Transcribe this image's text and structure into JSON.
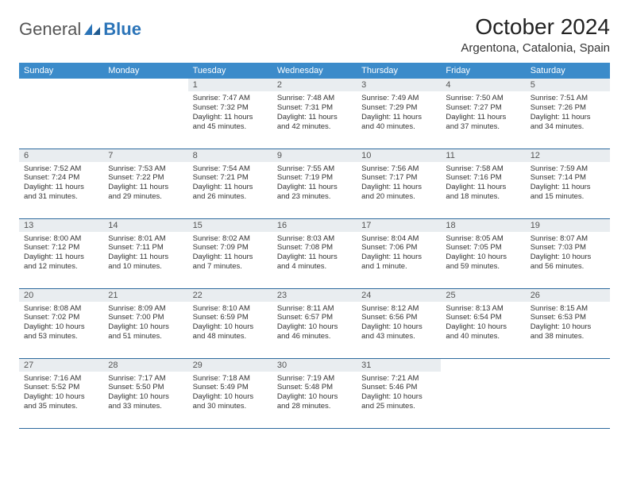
{
  "brand": {
    "general": "General",
    "blue": "Blue"
  },
  "title": "October 2024",
  "location": "Argentona, Catalonia, Spain",
  "colors": {
    "header_bg": "#3b8bca",
    "header_text": "#ffffff",
    "daynum_bg": "#e9edf0",
    "row_border": "#2d6a9e",
    "brand_blue": "#2b74b8"
  },
  "weekdays": [
    "Sunday",
    "Monday",
    "Tuesday",
    "Wednesday",
    "Thursday",
    "Friday",
    "Saturday"
  ],
  "cells": [
    {
      "n": "",
      "sr": "",
      "ss": "",
      "dl": "",
      "empty": true
    },
    {
      "n": "",
      "sr": "",
      "ss": "",
      "dl": "",
      "empty": true
    },
    {
      "n": "1",
      "sr": "Sunrise: 7:47 AM",
      "ss": "Sunset: 7:32 PM",
      "dl": "Daylight: 11 hours and 45 minutes."
    },
    {
      "n": "2",
      "sr": "Sunrise: 7:48 AM",
      "ss": "Sunset: 7:31 PM",
      "dl": "Daylight: 11 hours and 42 minutes."
    },
    {
      "n": "3",
      "sr": "Sunrise: 7:49 AM",
      "ss": "Sunset: 7:29 PM",
      "dl": "Daylight: 11 hours and 40 minutes."
    },
    {
      "n": "4",
      "sr": "Sunrise: 7:50 AM",
      "ss": "Sunset: 7:27 PM",
      "dl": "Daylight: 11 hours and 37 minutes."
    },
    {
      "n": "5",
      "sr": "Sunrise: 7:51 AM",
      "ss": "Sunset: 7:26 PM",
      "dl": "Daylight: 11 hours and 34 minutes."
    },
    {
      "n": "6",
      "sr": "Sunrise: 7:52 AM",
      "ss": "Sunset: 7:24 PM",
      "dl": "Daylight: 11 hours and 31 minutes."
    },
    {
      "n": "7",
      "sr": "Sunrise: 7:53 AM",
      "ss": "Sunset: 7:22 PM",
      "dl": "Daylight: 11 hours and 29 minutes."
    },
    {
      "n": "8",
      "sr": "Sunrise: 7:54 AM",
      "ss": "Sunset: 7:21 PM",
      "dl": "Daylight: 11 hours and 26 minutes."
    },
    {
      "n": "9",
      "sr": "Sunrise: 7:55 AM",
      "ss": "Sunset: 7:19 PM",
      "dl": "Daylight: 11 hours and 23 minutes."
    },
    {
      "n": "10",
      "sr": "Sunrise: 7:56 AM",
      "ss": "Sunset: 7:17 PM",
      "dl": "Daylight: 11 hours and 20 minutes."
    },
    {
      "n": "11",
      "sr": "Sunrise: 7:58 AM",
      "ss": "Sunset: 7:16 PM",
      "dl": "Daylight: 11 hours and 18 minutes."
    },
    {
      "n": "12",
      "sr": "Sunrise: 7:59 AM",
      "ss": "Sunset: 7:14 PM",
      "dl": "Daylight: 11 hours and 15 minutes."
    },
    {
      "n": "13",
      "sr": "Sunrise: 8:00 AM",
      "ss": "Sunset: 7:12 PM",
      "dl": "Daylight: 11 hours and 12 minutes."
    },
    {
      "n": "14",
      "sr": "Sunrise: 8:01 AM",
      "ss": "Sunset: 7:11 PM",
      "dl": "Daylight: 11 hours and 10 minutes."
    },
    {
      "n": "15",
      "sr": "Sunrise: 8:02 AM",
      "ss": "Sunset: 7:09 PM",
      "dl": "Daylight: 11 hours and 7 minutes."
    },
    {
      "n": "16",
      "sr": "Sunrise: 8:03 AM",
      "ss": "Sunset: 7:08 PM",
      "dl": "Daylight: 11 hours and 4 minutes."
    },
    {
      "n": "17",
      "sr": "Sunrise: 8:04 AM",
      "ss": "Sunset: 7:06 PM",
      "dl": "Daylight: 11 hours and 1 minute."
    },
    {
      "n": "18",
      "sr": "Sunrise: 8:05 AM",
      "ss": "Sunset: 7:05 PM",
      "dl": "Daylight: 10 hours and 59 minutes."
    },
    {
      "n": "19",
      "sr": "Sunrise: 8:07 AM",
      "ss": "Sunset: 7:03 PM",
      "dl": "Daylight: 10 hours and 56 minutes."
    },
    {
      "n": "20",
      "sr": "Sunrise: 8:08 AM",
      "ss": "Sunset: 7:02 PM",
      "dl": "Daylight: 10 hours and 53 minutes."
    },
    {
      "n": "21",
      "sr": "Sunrise: 8:09 AM",
      "ss": "Sunset: 7:00 PM",
      "dl": "Daylight: 10 hours and 51 minutes."
    },
    {
      "n": "22",
      "sr": "Sunrise: 8:10 AM",
      "ss": "Sunset: 6:59 PM",
      "dl": "Daylight: 10 hours and 48 minutes."
    },
    {
      "n": "23",
      "sr": "Sunrise: 8:11 AM",
      "ss": "Sunset: 6:57 PM",
      "dl": "Daylight: 10 hours and 46 minutes."
    },
    {
      "n": "24",
      "sr": "Sunrise: 8:12 AM",
      "ss": "Sunset: 6:56 PM",
      "dl": "Daylight: 10 hours and 43 minutes."
    },
    {
      "n": "25",
      "sr": "Sunrise: 8:13 AM",
      "ss": "Sunset: 6:54 PM",
      "dl": "Daylight: 10 hours and 40 minutes."
    },
    {
      "n": "26",
      "sr": "Sunrise: 8:15 AM",
      "ss": "Sunset: 6:53 PM",
      "dl": "Daylight: 10 hours and 38 minutes."
    },
    {
      "n": "27",
      "sr": "Sunrise: 7:16 AM",
      "ss": "Sunset: 5:52 PM",
      "dl": "Daylight: 10 hours and 35 minutes."
    },
    {
      "n": "28",
      "sr": "Sunrise: 7:17 AM",
      "ss": "Sunset: 5:50 PM",
      "dl": "Daylight: 10 hours and 33 minutes."
    },
    {
      "n": "29",
      "sr": "Sunrise: 7:18 AM",
      "ss": "Sunset: 5:49 PM",
      "dl": "Daylight: 10 hours and 30 minutes."
    },
    {
      "n": "30",
      "sr": "Sunrise: 7:19 AM",
      "ss": "Sunset: 5:48 PM",
      "dl": "Daylight: 10 hours and 28 minutes."
    },
    {
      "n": "31",
      "sr": "Sunrise: 7:21 AM",
      "ss": "Sunset: 5:46 PM",
      "dl": "Daylight: 10 hours and 25 minutes."
    },
    {
      "n": "",
      "sr": "",
      "ss": "",
      "dl": "",
      "empty": true
    },
    {
      "n": "",
      "sr": "",
      "ss": "",
      "dl": "",
      "empty": true
    }
  ]
}
